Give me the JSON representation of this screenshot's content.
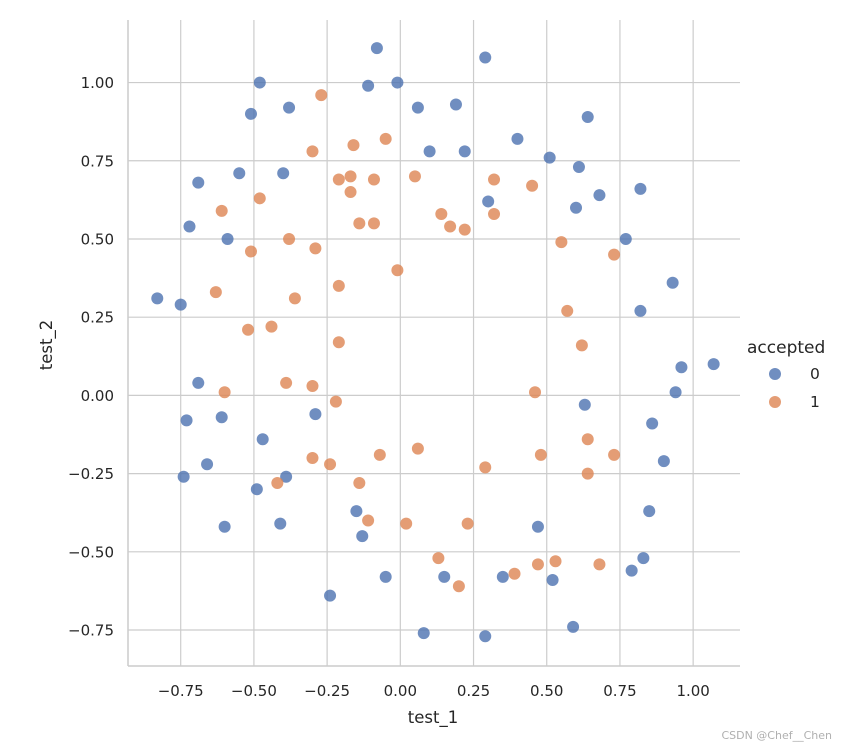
{
  "chart_data": {
    "type": "scatter",
    "xlabel": "test_1",
    "ylabel": "test_2",
    "xlim": [
      -0.93,
      1.16
    ],
    "ylim": [
      -0.865,
      1.2
    ],
    "xticks": [
      -0.75,
      -0.5,
      -0.25,
      0.0,
      0.25,
      0.5,
      0.75,
      1.0
    ],
    "xtick_labels": [
      "−0.75",
      "−0.50",
      "−0.25",
      "0.00",
      "0.25",
      "0.50",
      "0.75",
      "1.00"
    ],
    "yticks": [
      -0.75,
      -0.5,
      -0.25,
      0.0,
      0.25,
      0.5,
      0.75,
      1.0
    ],
    "ytick_labels": [
      "−0.75",
      "−0.50",
      "−0.25",
      "0.00",
      "0.25",
      "0.50",
      "0.75",
      "1.00"
    ],
    "grid": true,
    "legend": {
      "title": "accepted",
      "placement": "right"
    },
    "series": [
      {
        "name": "0",
        "color": "#4C72B0",
        "points": [
          [
            -0.08,
            1.11
          ],
          [
            0.29,
            1.08
          ],
          [
            -0.48,
            1.0
          ],
          [
            -0.11,
            0.99
          ],
          [
            -0.01,
            1.0
          ],
          [
            -0.38,
            0.92
          ],
          [
            -0.51,
            0.9
          ],
          [
            0.06,
            0.92
          ],
          [
            0.19,
            0.93
          ],
          [
            0.64,
            0.89
          ],
          [
            0.4,
            0.82
          ],
          [
            0.1,
            0.78
          ],
          [
            0.22,
            0.78
          ],
          [
            0.51,
            0.76
          ],
          [
            0.61,
            0.73
          ],
          [
            -0.55,
            0.71
          ],
          [
            -0.4,
            0.71
          ],
          [
            -0.69,
            0.68
          ],
          [
            0.82,
            0.66
          ],
          [
            0.68,
            0.64
          ],
          [
            0.3,
            0.62
          ],
          [
            0.6,
            0.6
          ],
          [
            -0.72,
            0.54
          ],
          [
            -0.59,
            0.5
          ],
          [
            0.77,
            0.5
          ],
          [
            0.93,
            0.36
          ],
          [
            -0.83,
            0.31
          ],
          [
            -0.75,
            0.29
          ],
          [
            0.82,
            0.27
          ],
          [
            1.07,
            0.1
          ],
          [
            0.96,
            0.09
          ],
          [
            -0.69,
            0.04
          ],
          [
            0.94,
            0.01
          ],
          [
            0.63,
            -0.03
          ],
          [
            -0.61,
            -0.07
          ],
          [
            -0.29,
            -0.06
          ],
          [
            -0.73,
            -0.08
          ],
          [
            0.86,
            -0.09
          ],
          [
            -0.47,
            -0.14
          ],
          [
            0.9,
            -0.21
          ],
          [
            -0.66,
            -0.22
          ],
          [
            -0.74,
            -0.26
          ],
          [
            -0.39,
            -0.26
          ],
          [
            -0.49,
            -0.3
          ],
          [
            -0.6,
            -0.42
          ],
          [
            -0.41,
            -0.41
          ],
          [
            -0.15,
            -0.37
          ],
          [
            0.85,
            -0.37
          ],
          [
            0.47,
            -0.42
          ],
          [
            -0.13,
            -0.45
          ],
          [
            0.83,
            -0.52
          ],
          [
            0.79,
            -0.56
          ],
          [
            -0.05,
            -0.58
          ],
          [
            0.15,
            -0.58
          ],
          [
            0.35,
            -0.58
          ],
          [
            0.52,
            -0.59
          ],
          [
            -0.24,
            -0.64
          ],
          [
            0.59,
            -0.74
          ],
          [
            0.08,
            -0.76
          ],
          [
            0.29,
            -0.77
          ]
        ]
      },
      {
        "name": "1",
        "color": "#DD8452",
        "points": [
          [
            -0.27,
            0.96
          ],
          [
            -0.05,
            0.82
          ],
          [
            -0.16,
            0.8
          ],
          [
            -0.3,
            0.78
          ],
          [
            0.05,
            0.7
          ],
          [
            -0.21,
            0.69
          ],
          [
            -0.17,
            0.7
          ],
          [
            -0.09,
            0.69
          ],
          [
            0.32,
            0.69
          ],
          [
            0.45,
            0.67
          ],
          [
            -0.17,
            0.65
          ],
          [
            -0.48,
            0.63
          ],
          [
            -0.61,
            0.59
          ],
          [
            0.14,
            0.58
          ],
          [
            0.32,
            0.58
          ],
          [
            -0.09,
            0.55
          ],
          [
            -0.14,
            0.55
          ],
          [
            0.17,
            0.54
          ],
          [
            0.22,
            0.53
          ],
          [
            -0.38,
            0.5
          ],
          [
            0.55,
            0.49
          ],
          [
            -0.29,
            0.47
          ],
          [
            -0.51,
            0.46
          ],
          [
            0.73,
            0.45
          ],
          [
            -0.01,
            0.4
          ],
          [
            -0.21,
            0.35
          ],
          [
            -0.63,
            0.33
          ],
          [
            -0.36,
            0.31
          ],
          [
            0.57,
            0.27
          ],
          [
            -0.44,
            0.22
          ],
          [
            -0.52,
            0.21
          ],
          [
            -0.21,
            0.17
          ],
          [
            0.62,
            0.16
          ],
          [
            -0.39,
            0.04
          ],
          [
            -0.3,
            0.03
          ],
          [
            0.46,
            0.01
          ],
          [
            -0.6,
            0.01
          ],
          [
            -0.22,
            -0.02
          ],
          [
            0.64,
            -0.14
          ],
          [
            0.06,
            -0.17
          ],
          [
            -0.07,
            -0.19
          ],
          [
            0.48,
            -0.19
          ],
          [
            0.73,
            -0.19
          ],
          [
            -0.3,
            -0.2
          ],
          [
            -0.24,
            -0.22
          ],
          [
            0.29,
            -0.23
          ],
          [
            0.64,
            -0.25
          ],
          [
            -0.14,
            -0.28
          ],
          [
            -0.42,
            -0.28
          ],
          [
            -0.11,
            -0.4
          ],
          [
            0.02,
            -0.41
          ],
          [
            0.23,
            -0.41
          ],
          [
            0.13,
            -0.52
          ],
          [
            0.53,
            -0.53
          ],
          [
            0.47,
            -0.54
          ],
          [
            0.68,
            -0.54
          ],
          [
            0.39,
            -0.57
          ],
          [
            0.2,
            -0.61
          ]
        ]
      }
    ]
  },
  "watermark": "CSDN @Chef__Chen"
}
